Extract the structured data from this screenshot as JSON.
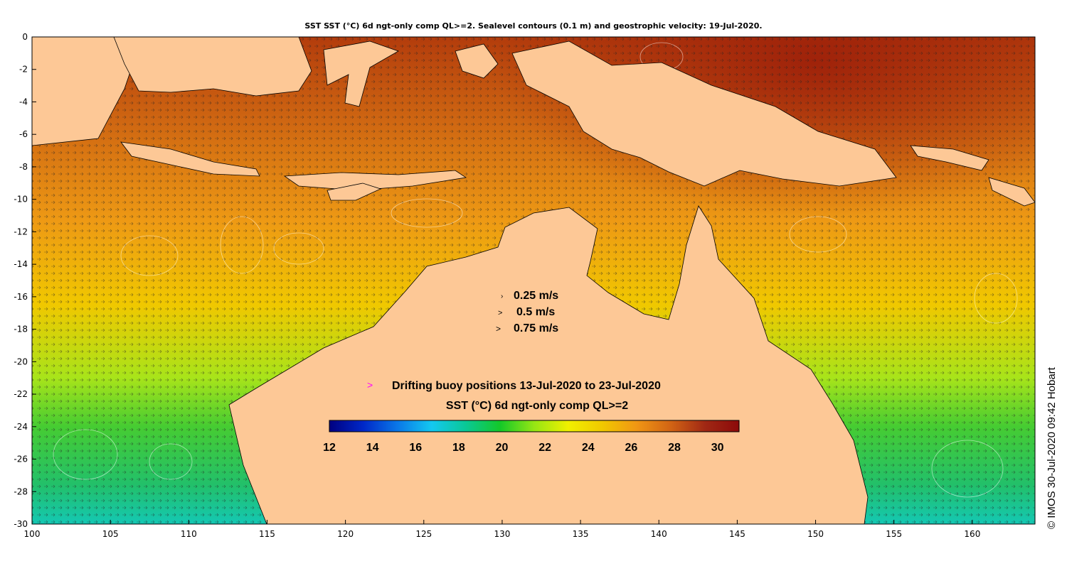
{
  "title": "SST SST (°C) 6d ngt-only comp QL>=2. Sealevel contours (0.1 m) and geostrophic velocity: 19-Jul-2020.",
  "axes": {
    "x_ticks": [
      "100",
      "105",
      "110",
      "115",
      "120",
      "125",
      "130",
      "135",
      "140",
      "145",
      "150",
      "155",
      "160"
    ],
    "y_ticks": [
      "0",
      "-2",
      "-4",
      "-6",
      "-8",
      "-10",
      "-12",
      "-14",
      "-16",
      "-18",
      "-20",
      "-22",
      "-24",
      "-26",
      "-28",
      "-30"
    ],
    "lon_range": [
      100,
      164
    ],
    "lat_range": [
      -30,
      0
    ]
  },
  "velocity_legend": [
    "0.25 m/s",
    "0.5 m/s",
    "0.75 m/s"
  ],
  "buoy_legend": {
    "marker": ">",
    "text": "Drifting buoy positions 13-Jul-2020 to 23-Jul-2020",
    "color": "#ff00ff"
  },
  "colorbar": {
    "title": "SST (°C) 6d ngt-only comp QL>=2",
    "ticks": [
      "12",
      "14",
      "16",
      "18",
      "20",
      "22",
      "24",
      "26",
      "28",
      "30"
    ],
    "range": [
      12,
      31
    ],
    "colors": [
      "#000080",
      "#0028c8",
      "#0a78e8",
      "#14c8f0",
      "#0ac896",
      "#14c828",
      "#96e614",
      "#f0f000",
      "#f0c800",
      "#f09614",
      "#d26414",
      "#a02814",
      "#8c0a0a"
    ]
  },
  "land_color": "#fdc896",
  "credit": "© IMOS 30-Jul-2020 09:42 Hobart"
}
